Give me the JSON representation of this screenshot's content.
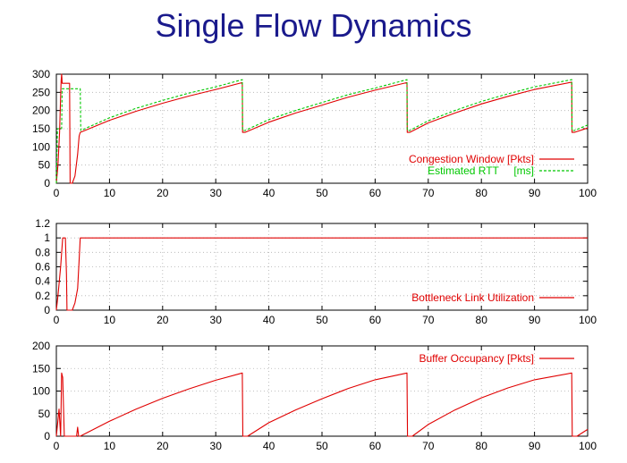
{
  "title": "Single Flow Dynamics",
  "colors": {
    "title": "#1a1a8c",
    "red": "#e00000",
    "green": "#00c800",
    "grid": "#b0b0b0"
  },
  "chart_data": [
    {
      "type": "line",
      "xlim": [
        0,
        100
      ],
      "ylim": [
        0,
        300
      ],
      "xticks": [
        0,
        10,
        20,
        30,
        40,
        50,
        60,
        70,
        80,
        90,
        100
      ],
      "yticks": [
        0,
        50,
        100,
        150,
        200,
        250,
        300
      ],
      "grid": true,
      "legend_position": "bottom-right",
      "series": [
        {
          "name": "Congestion Window [Pkts]",
          "color": "#e00000",
          "style": "solid",
          "x": [
            0,
            0.3,
            0.6,
            0.9,
            1.0,
            1.05,
            1.1,
            1.3,
            2.5,
            2.6,
            3.0,
            3.5,
            4.0,
            4.3,
            4.5,
            10,
            15,
            20,
            25,
            30,
            35,
            35.05,
            35.5,
            40,
            45,
            50,
            55,
            60,
            66,
            66.05,
            66.5,
            70,
            75,
            80,
            85,
            90,
            97,
            97.05,
            97.5,
            100
          ],
          "y": [
            0,
            50,
            140,
            280,
            300,
            290,
            275,
            275,
            275,
            0,
            0,
            20,
            80,
            130,
            140,
            173,
            198,
            220,
            240,
            258,
            277,
            140,
            140,
            168,
            193,
            215,
            237,
            256,
            277,
            140,
            140,
            166,
            193,
            218,
            239,
            258,
            278,
            140,
            140,
            152
          ]
        },
        {
          "name": "Estimated RTT     [ms]",
          "color": "#00c800",
          "style": "dashed",
          "x": [
            0,
            0.2,
            1.0,
            1.1,
            4.5,
            4.6,
            10,
            15,
            20,
            25,
            30,
            35,
            35.05,
            35.5,
            40,
            45,
            50,
            55,
            60,
            66,
            66.05,
            66.5,
            70,
            75,
            80,
            85,
            90,
            97,
            97.05,
            97.5,
            100
          ],
          "y": [
            0,
            150,
            150,
            260,
            260,
            145,
            180,
            206,
            228,
            248,
            265,
            285,
            145,
            145,
            175,
            200,
            222,
            244,
            262,
            285,
            145,
            145,
            172,
            200,
            225,
            246,
            265,
            285,
            145,
            145,
            160
          ]
        }
      ]
    },
    {
      "type": "line",
      "xlim": [
        0,
        100
      ],
      "ylim": [
        0,
        1.2
      ],
      "xticks": [
        0,
        10,
        20,
        30,
        40,
        50,
        60,
        70,
        80,
        90,
        100
      ],
      "yticks": [
        0,
        0.2,
        0.4,
        0.6,
        0.8,
        1,
        1.2
      ],
      "grid": true,
      "legend_position": "bottom-right",
      "series": [
        {
          "name": "Bottleneck Link Utilization",
          "color": "#e00000",
          "style": "solid",
          "x": [
            0,
            0.3,
            0.8,
            1.2,
            1.5,
            1.7,
            1.9,
            2.0,
            3.0,
            3.5,
            4.0,
            4.3,
            4.5,
            100
          ],
          "y": [
            0,
            0.2,
            0.6,
            1.0,
            1.0,
            1.0,
            0.5,
            0,
            0,
            0.1,
            0.3,
            0.7,
            1.0,
            1.0
          ]
        }
      ]
    },
    {
      "type": "line",
      "xlim": [
        0,
        100
      ],
      "ylim": [
        0,
        200
      ],
      "xticks": [
        0,
        10,
        20,
        30,
        40,
        50,
        60,
        70,
        80,
        90,
        100
      ],
      "yticks": [
        0,
        50,
        100,
        150,
        200
      ],
      "grid": true,
      "legend_position": "top-right",
      "series": [
        {
          "name": "Buffer Occupancy [Pkts]",
          "color": "#e00000",
          "style": "solid",
          "x": [
            0,
            0.5,
            0.8,
            1.0,
            1.2,
            1.5,
            2.0,
            3.8,
            4.0,
            4.2,
            4.5,
            10,
            15,
            20,
            25,
            30,
            35,
            35.1,
            36,
            40,
            45,
            50,
            55,
            60,
            66,
            66.1,
            67,
            70,
            75,
            80,
            85,
            90,
            97,
            97.1,
            98,
            100
          ],
          "y": [
            0,
            60,
            0,
            140,
            130,
            0,
            0,
            0,
            20,
            0,
            0,
            33,
            60,
            84,
            105,
            124,
            140,
            0,
            0,
            30,
            58,
            83,
            106,
            125,
            140,
            0,
            0,
            26,
            58,
            85,
            107,
            125,
            140,
            0,
            0,
            15
          ]
        }
      ]
    }
  ]
}
